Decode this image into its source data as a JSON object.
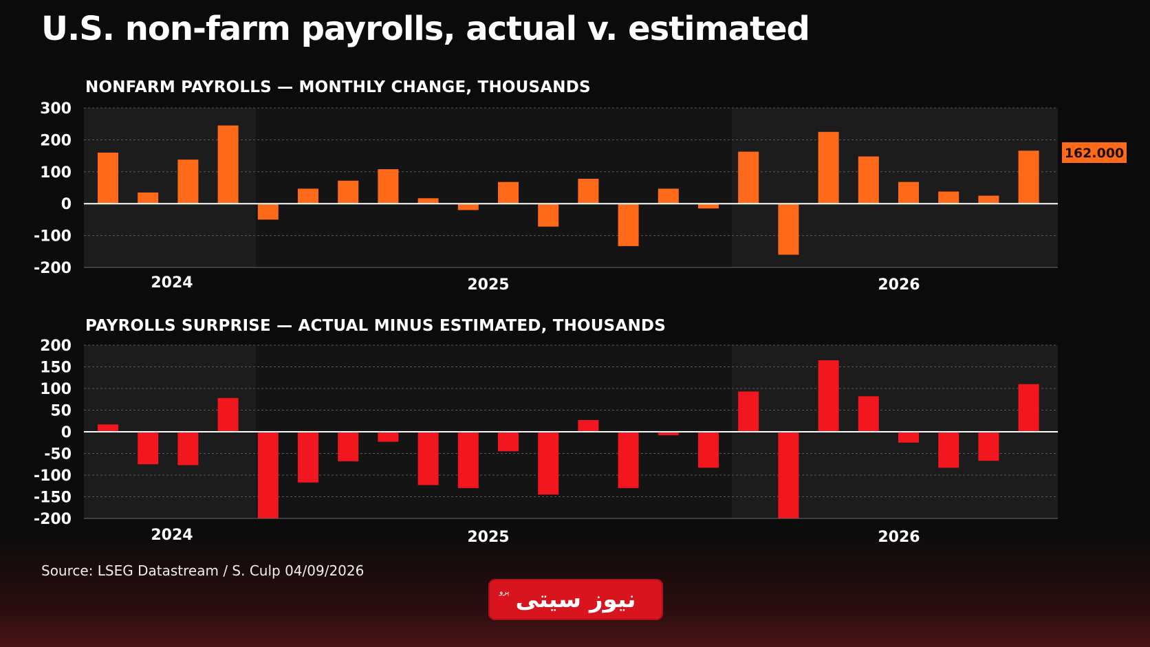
{
  "title": "U.S. non-farm payrolls, actual v. estimated",
  "source": "Source: LSEG Datastream / S. Culp 04/09/2026",
  "logo": {
    "text": "نیوز سیتی",
    "small": "پرو"
  },
  "colors": {
    "bar_top": "#ff6a1a",
    "bar_bottom": "#f2161e",
    "callout": "#ff6a1a",
    "band": "#1c1c1c"
  },
  "chart_data": [
    {
      "type": "bar",
      "title": "NONFARM PAYROLLS — MONTHLY CHANGE, THOUSANDS",
      "ylim": [
        -200,
        300
      ],
      "yticks": [
        300,
        200,
        100,
        0,
        -100,
        -200
      ],
      "values": [
        160,
        35,
        138,
        245,
        -50,
        47,
        72,
        108,
        17,
        -20,
        68,
        -72,
        78,
        -133,
        47,
        -15,
        163,
        -160,
        225,
        148,
        68,
        38,
        25,
        166
      ],
      "x_tick_labels": [
        "2024",
        "2025",
        "2026"
      ],
      "callout": "162.000",
      "grid": true,
      "series_color": "#ff6a1a"
    },
    {
      "type": "bar",
      "title": "PAYROLLS SURPRISE — ACTUAL MINUS ESTIMATED, THOUSANDS",
      "ylim": [
        -200,
        200
      ],
      "yticks": [
        200,
        150,
        100,
        50,
        0,
        -50,
        -100,
        -150,
        -200
      ],
      "values": [
        17,
        -75,
        -77,
        78,
        -200,
        -117,
        -68,
        -23,
        -123,
        -130,
        -45,
        -145,
        27,
        -130,
        -8,
        -83,
        93,
        -200,
        165,
        82,
        -25,
        -83,
        -67,
        110
      ],
      "x_tick_labels": [
        "2024",
        "2025",
        "2026"
      ],
      "grid": true,
      "series_color": "#f2161e"
    }
  ]
}
